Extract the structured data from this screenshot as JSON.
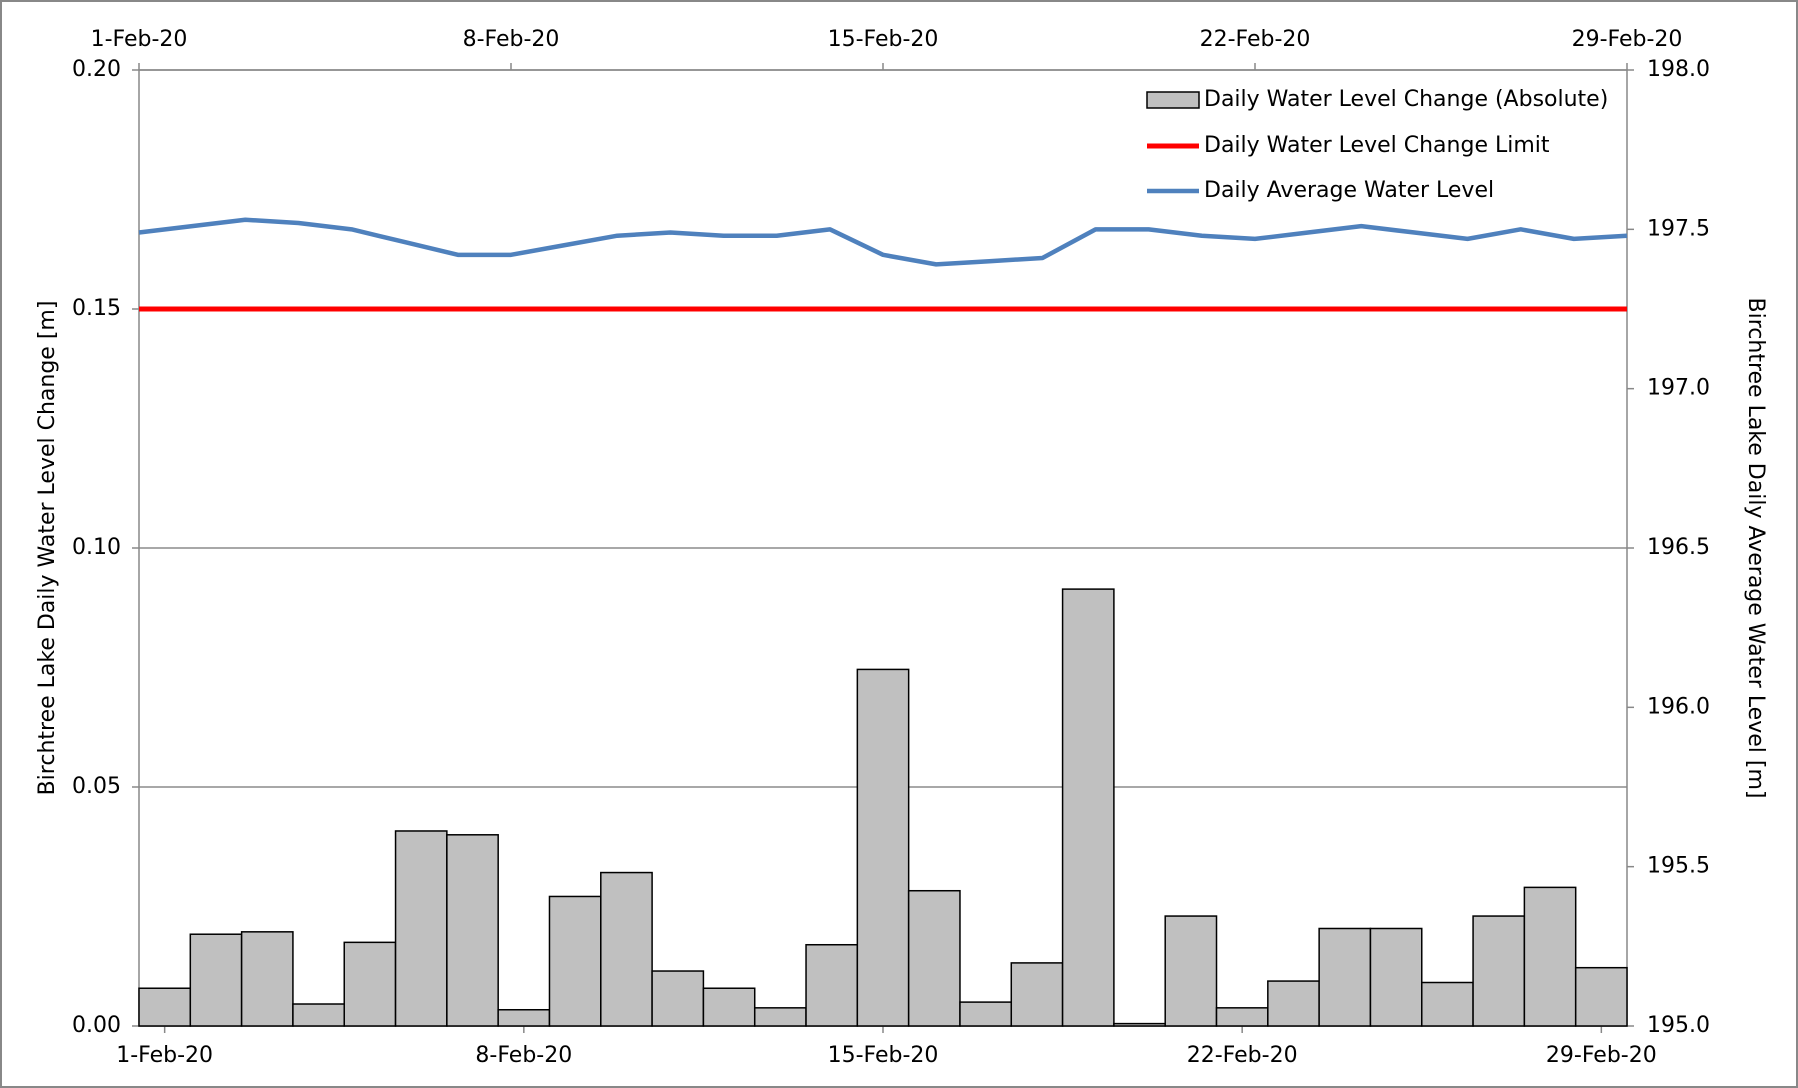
{
  "chart_data": {
    "type": "bar-line",
    "categories": [
      "1-Feb-20",
      null,
      null,
      null,
      null,
      null,
      null,
      "8-Feb-20",
      null,
      null,
      null,
      null,
      null,
      null,
      "15-Feb-20",
      null,
      null,
      null,
      null,
      null,
      null,
      "22-Feb-20",
      null,
      null,
      null,
      null,
      null,
      null,
      "29-Feb-20"
    ],
    "series": [
      {
        "name": "Daily Water Level Change (Absolute)",
        "color": "#c0c0c0",
        "kind": "bar",
        "values": [
          0.0079,
          0.0192,
          0.0197,
          0.0046,
          0.0175,
          0.0408,
          0.04,
          0.0034,
          0.0271,
          0.0321,
          0.0115,
          0.0079,
          0.0038,
          0.017,
          0.0746,
          0.0283,
          0.005,
          0.0132,
          0.0914,
          0.0005,
          0.023,
          0.0038,
          0.0094,
          0.0204,
          0.0204,
          0.0091,
          0.023,
          0.029,
          0.0122
        ]
      },
      {
        "name": "Daily Water Level Change Limit",
        "color": "#ff0000",
        "kind": "hline",
        "value": 0.15
      },
      {
        "name": "Daily Average Water Level",
        "color": "#4f81bd",
        "kind": "line",
        "axis": "y2",
        "values": [
          197.49,
          197.51,
          197.53,
          197.52,
          197.5,
          197.46,
          197.42,
          197.42,
          197.45,
          197.48,
          197.49,
          197.48,
          197.48,
          197.5,
          197.42,
          197.39,
          197.4,
          197.41,
          197.5,
          197.5,
          197.48,
          197.47,
          197.49,
          197.51,
          197.49,
          197.47,
          197.5,
          197.47,
          197.48
        ]
      }
    ],
    "ylabel": "Birchtree Lake Daily Water Level Change [m]",
    "y2label": "Birchtree Lake Daily Average Water Level [m]",
    "ylim": [
      0,
      0.2
    ],
    "yticks": [
      {
        "value": 0,
        "label": "0.00"
      },
      0.05,
      {
        "value": 0.1,
        "label": "0.10"
      },
      0.15,
      {
        "value": 0.2,
        "label": "0.20"
      }
    ],
    "y2lim": [
      195,
      198
    ],
    "y2ticks": [
      {
        "value": 195,
        "label": "195.0"
      },
      195.5,
      {
        "value": 196,
        "label": "196.0"
      },
      196.5,
      {
        "value": 197,
        "label": "197.0"
      },
      197.5,
      {
        "value": 198,
        "label": "198.0"
      }
    ],
    "grid": true,
    "legend": "upper right"
  }
}
